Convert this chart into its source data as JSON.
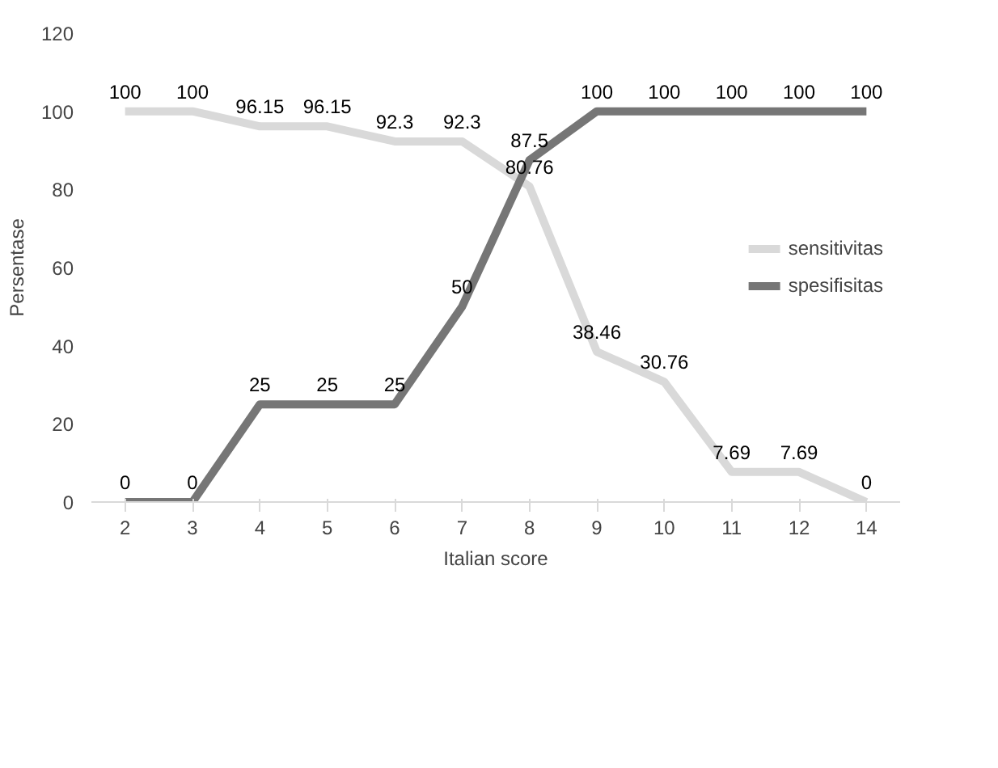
{
  "chart_data": {
    "type": "line",
    "xlabel": "Italian score",
    "ylabel": "Persentase",
    "categories": [
      "2",
      "3",
      "4",
      "5",
      "6",
      "7",
      "8",
      "9",
      "10",
      "11",
      "12",
      "14"
    ],
    "series": [
      {
        "name": "sensitivitas",
        "color": "#d9d9d9",
        "values": [
          100,
          100,
          96.15,
          96.15,
          92.3,
          92.3,
          80.76,
          38.46,
          30.76,
          7.69,
          7.69,
          0
        ]
      },
      {
        "name": "spesifisitas",
        "color": "#767676",
        "values": [
          0,
          0,
          25,
          25,
          25,
          50,
          87.5,
          100,
          100,
          100,
          100,
          100
        ]
      }
    ],
    "ylim": [
      0,
      120
    ],
    "yticks": [
      0,
      20,
      40,
      60,
      80,
      100,
      120
    ],
    "grid": false,
    "legend": "right",
    "data_labels": true
  }
}
